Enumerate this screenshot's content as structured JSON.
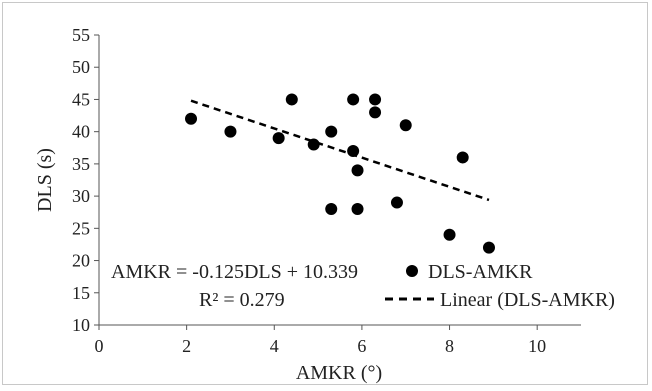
{
  "chart_data": {
    "type": "scatter",
    "title": "",
    "xlabel": "AMKR (°)",
    "ylabel": "DLS (s)",
    "xlim": [
      0,
      11
    ],
    "ylim": [
      10,
      55
    ],
    "x_ticks": [
      0,
      2,
      4,
      6,
      8,
      10
    ],
    "y_ticks": [
      10,
      15,
      20,
      25,
      30,
      35,
      40,
      45,
      50,
      55
    ],
    "grid": false,
    "legend_position": "bottom-right",
    "series": [
      {
        "name": "DLS-AMKR",
        "marker": "circle",
        "color": "#000000",
        "points": [
          [
            2.1,
            42
          ],
          [
            3.0,
            40
          ],
          [
            4.1,
            39
          ],
          [
            4.4,
            45
          ],
          [
            4.9,
            38
          ],
          [
            5.3,
            40
          ],
          [
            5.3,
            28
          ],
          [
            5.8,
            45
          ],
          [
            5.8,
            37
          ],
          [
            5.9,
            34
          ],
          [
            5.9,
            28
          ],
          [
            6.3,
            45
          ],
          [
            6.3,
            43
          ],
          [
            6.8,
            29
          ],
          [
            7.0,
            41
          ],
          [
            8.0,
            24
          ],
          [
            8.3,
            36
          ],
          [
            8.9,
            22
          ]
        ]
      }
    ],
    "trendline": {
      "name": "Linear (DLS-AMKR)",
      "style": "dashed",
      "color": "#000000",
      "x_range": [
        2.1,
        8.9
      ],
      "y_range": [
        44.8,
        29.4
      ]
    },
    "annotations": {
      "equation": "AMKR = -0.125DLS + 10.339",
      "r_squared": "R² = 0.279"
    }
  }
}
